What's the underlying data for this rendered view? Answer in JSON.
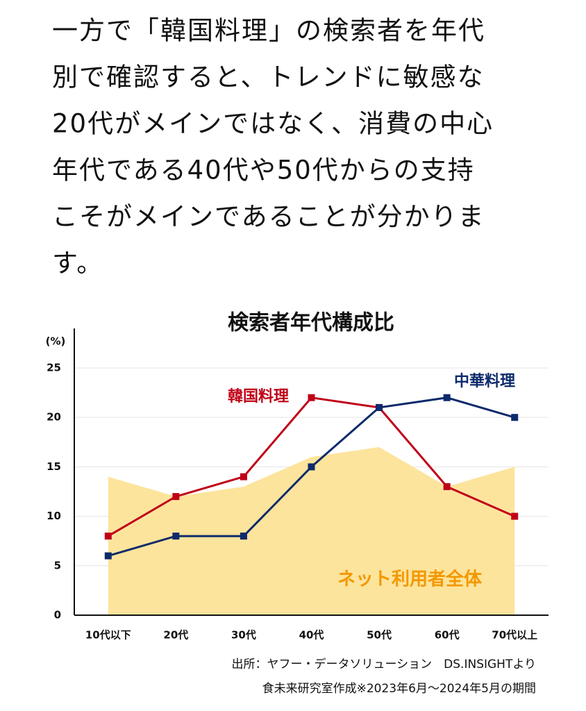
{
  "paragraph": [
    "一方で「韓国料理」の検索者を年代",
    "別で確認すると、トレンドに敏感な",
    "20代がメインではなく、消費の中心",
    "年代である40代や50代からの支持",
    "こそがメインであることが分かりま",
    "す。"
  ],
  "chart_data": {
    "type": "line",
    "title": "検索者年代構成比",
    "y_label": "(%)",
    "categories": [
      "10代以下",
      "20代",
      "30代",
      "40代",
      "50代",
      "60代",
      "70代以上"
    ],
    "series": [
      {
        "name": "ネット利用者全体",
        "color": "#fde49c",
        "label_color": "#f39800",
        "style": "area",
        "values": [
          14,
          12,
          13,
          16,
          17,
          13,
          15
        ]
      },
      {
        "name": "韓国料理",
        "color": "#c00018",
        "style": "line",
        "values": [
          8,
          12,
          14,
          22,
          21,
          13,
          10
        ]
      },
      {
        "name": "中華料理",
        "color": "#0d2a6b",
        "style": "line",
        "values": [
          6,
          8,
          8,
          15,
          21,
          22,
          20
        ]
      }
    ],
    "ylim": [
      0,
      29
    ],
    "yticks": [
      0,
      5,
      10,
      15,
      20,
      25
    ],
    "grid": true
  },
  "source": [
    "出所：ヤフー・データソリューション　DS.INSIGHTより",
    "食未来研究室作成※2023年6月～2024年5月の期間"
  ]
}
